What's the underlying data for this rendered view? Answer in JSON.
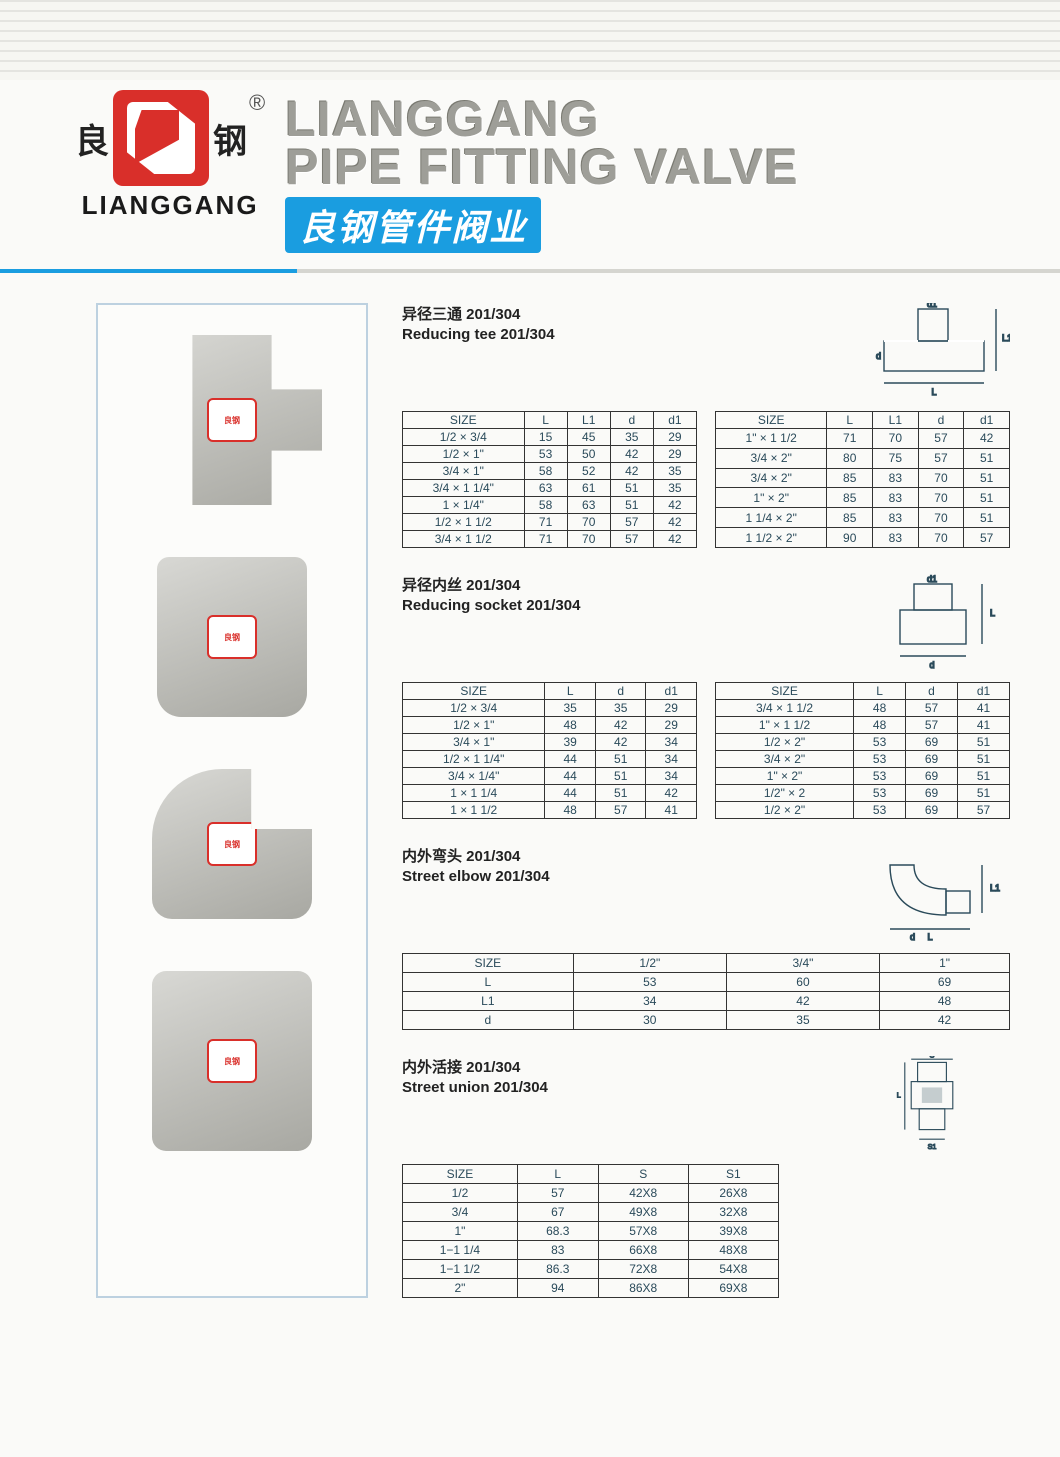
{
  "brand": {
    "cn_left": "良",
    "cn_right": "钢",
    "reg": "®",
    "en": "LIANGGANG",
    "title_en_l1": "LIANGGANG",
    "title_en_l2": "PIPE FITTING VALVE",
    "title_cn": "良钢管件阀业"
  },
  "colors": {
    "brand_red": "#d92f2a",
    "brand_blue": "#1a9de0",
    "title_gray": "#9e9e98",
    "table_text": "#2a4a5a",
    "border": "#333333",
    "photo_border": "#bdd1e0"
  },
  "sections": [
    {
      "id": "reducing_tee",
      "title_cn": "异径三通 201/304",
      "title_en": "Reducing tee 201/304",
      "table_type": "split",
      "columns": [
        "SIZE",
        "L",
        "L1",
        "d",
        "d1"
      ],
      "rows_left": [
        [
          "1/2 × 3/4",
          "15",
          "45",
          "35",
          "29"
        ],
        [
          "1/2 × 1\"",
          "53",
          "50",
          "42",
          "29"
        ],
        [
          "3/4 × 1\"",
          "58",
          "52",
          "42",
          "35"
        ],
        [
          "3/4 × 1 1/4\"",
          "63",
          "61",
          "51",
          "35"
        ],
        [
          "1 × 1/4\"",
          "58",
          "63",
          "51",
          "42"
        ],
        [
          "1/2 × 1 1/2",
          "71",
          "70",
          "57",
          "42"
        ],
        [
          "3/4 × 1 1/2",
          "71",
          "70",
          "57",
          "42"
        ]
      ],
      "rows_right": [
        [
          "1\" × 1 1/2",
          "71",
          "70",
          "57",
          "42"
        ],
        [
          "3/4 × 2\"",
          "80",
          "75",
          "57",
          "51"
        ],
        [
          "3/4 × 2\"",
          "85",
          "83",
          "70",
          "51"
        ],
        [
          "1\" × 2\"",
          "85",
          "83",
          "70",
          "51"
        ],
        [
          "1 1/4 × 2\"",
          "85",
          "83",
          "70",
          "51"
        ],
        [
          "1 1/2 × 2\"",
          "90",
          "83",
          "70",
          "57"
        ]
      ]
    },
    {
      "id": "reducing_socket",
      "title_cn": "异径内丝 201/304",
      "title_en": "Reducing socket 201/304",
      "table_type": "split",
      "columns": [
        "SIZE",
        "L",
        "d",
        "d1"
      ],
      "rows_left": [
        [
          "1/2 × 3/4",
          "35",
          "35",
          "29"
        ],
        [
          "1/2 × 1\"",
          "48",
          "42",
          "29"
        ],
        [
          "3/4 × 1\"",
          "39",
          "42",
          "34"
        ],
        [
          "1/2 × 1 1/4\"",
          "44",
          "51",
          "34"
        ],
        [
          "3/4 × 1/4\"",
          "44",
          "51",
          "34"
        ],
        [
          "1 × 1 1/4",
          "44",
          "51",
          "42"
        ],
        [
          "1 × 1 1/2",
          "48",
          "57",
          "41"
        ]
      ],
      "rows_right": [
        [
          "3/4 × 1 1/2",
          "48",
          "57",
          "41"
        ],
        [
          "1\" × 1 1/2",
          "48",
          "57",
          "41"
        ],
        [
          "1/2 × 2\"",
          "53",
          "69",
          "51"
        ],
        [
          "3/4 × 2\"",
          "53",
          "69",
          "51"
        ],
        [
          "1\" × 2\"",
          "53",
          "69",
          "51"
        ],
        [
          "1/2\" × 2",
          "53",
          "69",
          "51"
        ],
        [
          "1/2 × 2\"",
          "53",
          "69",
          "57"
        ]
      ]
    },
    {
      "id": "street_elbow",
      "title_cn": "内外弯头 201/304",
      "title_en": "Street elbow 201/304",
      "table_type": "matrix",
      "col_headers": [
        "SIZE",
        "1/2\"",
        "3/4\"",
        "1\""
      ],
      "rows": [
        [
          "L",
          "53",
          "60",
          "69"
        ],
        [
          "L1",
          "34",
          "42",
          "48"
        ],
        [
          "d",
          "30",
          "35",
          "42"
        ]
      ]
    },
    {
      "id": "street_union",
      "title_cn": "内外活接 201/304",
      "title_en": "Street union 201/304",
      "table_type": "simple",
      "columns": [
        "SIZE",
        "L",
        "S",
        "S1"
      ],
      "rows": [
        [
          "1/2",
          "57",
          "42X8",
          "26X8"
        ],
        [
          "3/4",
          "67",
          "49X8",
          "32X8"
        ],
        [
          "1\"",
          "68.3",
          "57X8",
          "39X8"
        ],
        [
          "1−1 1/4",
          "83",
          "66X8",
          "48X8"
        ],
        [
          "1−1 1/2",
          "86.3",
          "72X8",
          "54X8"
        ],
        [
          "2\"",
          "94",
          "86X8",
          "69X8"
        ]
      ]
    }
  ]
}
